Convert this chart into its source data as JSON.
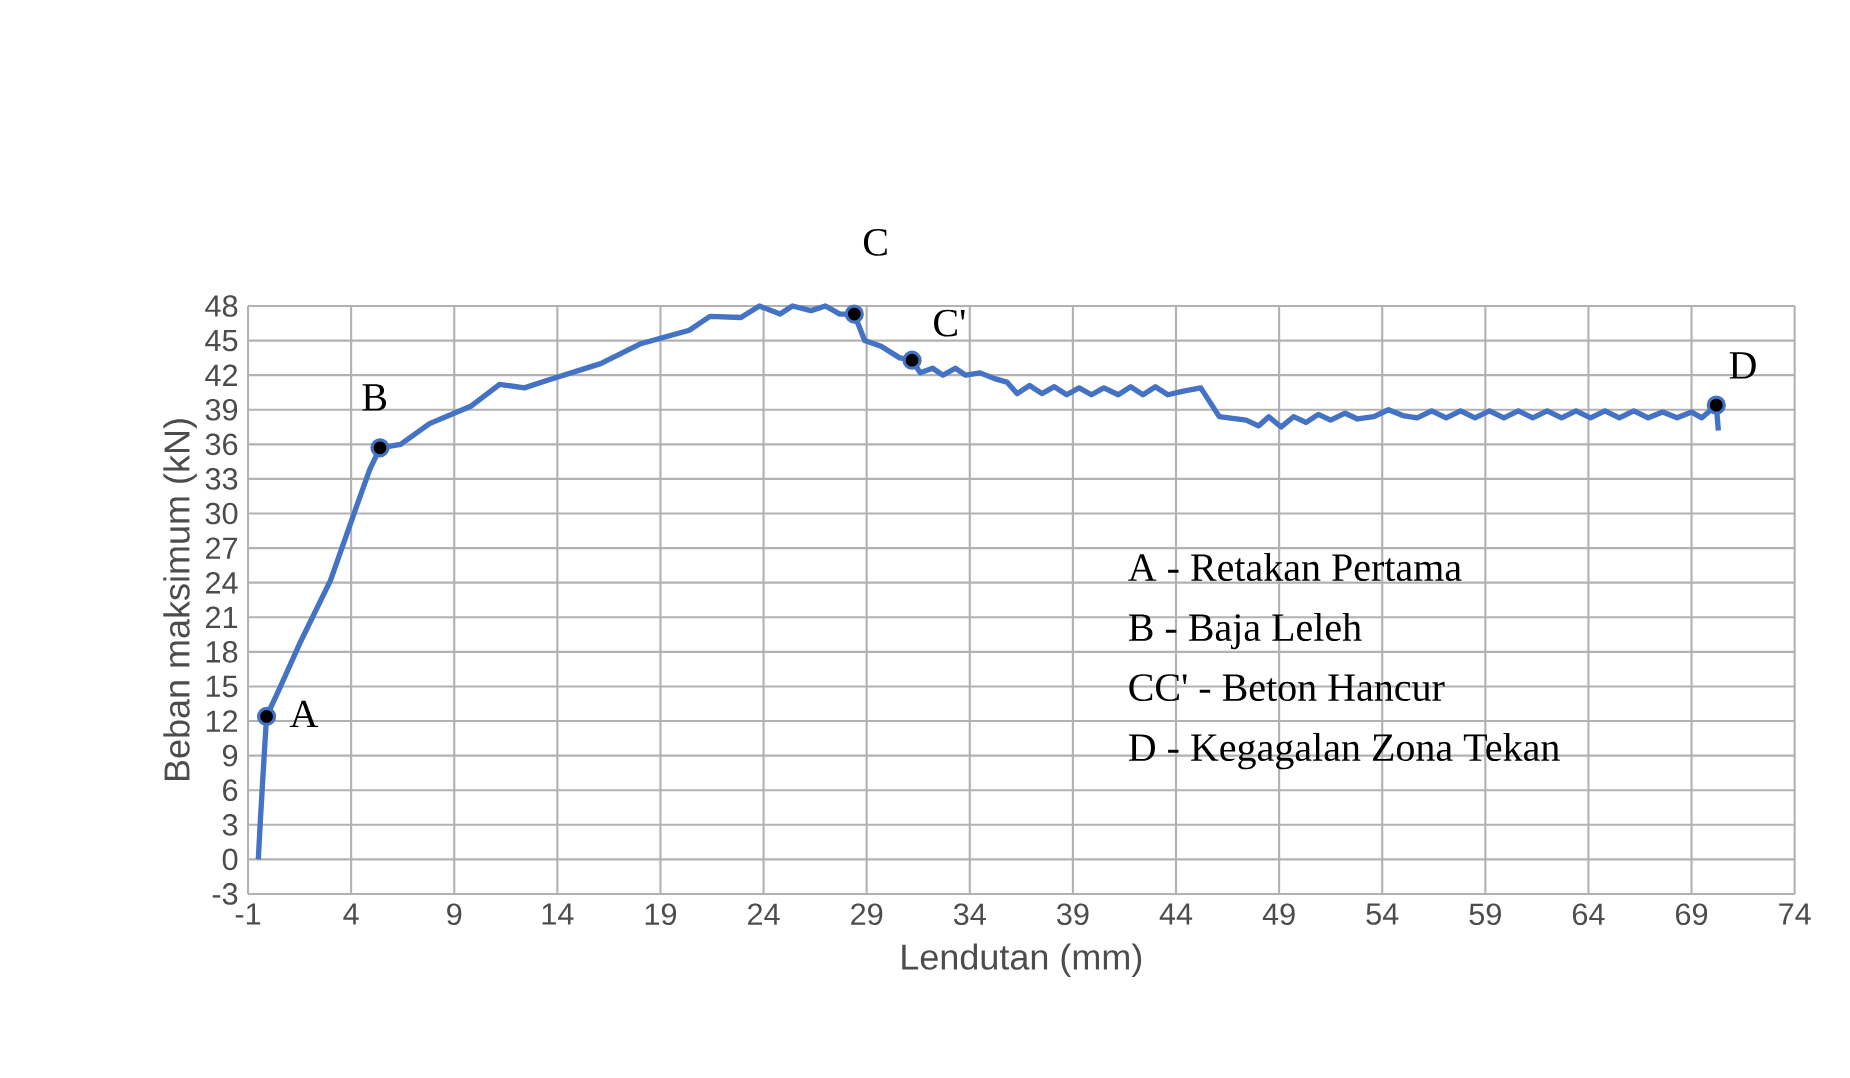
{
  "chart_data": {
    "type": "line",
    "xlabel": "Lendutan (mm)",
    "ylabel": "Beban maksimum (kN)",
    "xlim": [
      -1,
      74
    ],
    "xticks": [
      -1,
      4,
      9,
      14,
      19,
      24,
      29,
      34,
      39,
      44,
      49,
      54,
      59,
      64,
      69,
      74
    ],
    "ylim": [
      -3,
      48
    ],
    "yticks": [
      -3,
      0,
      3,
      6,
      9,
      12,
      15,
      18,
      21,
      24,
      27,
      30,
      33,
      36,
      39,
      42,
      45,
      48
    ],
    "grid": true,
    "series": [
      {
        "color": "#4472c4",
        "marker": "none",
        "line_style": "solid",
        "x": [
          -0.5,
          -0.4,
          -0.3,
          -0.2,
          -0.1,
          0.5,
          1.5,
          3.0,
          4.2,
          4.9,
          5.4,
          6.4,
          7.8,
          9.8,
          11.2,
          12.4,
          13.6,
          16.1,
          18.0,
          20.4,
          21.4,
          22.9,
          23.8,
          24.8,
          25.4,
          26.3,
          27.0,
          27.7,
          28.4,
          28.9,
          29.7,
          30.6,
          31.2,
          31.6,
          32.2,
          32.7,
          33.3,
          33.8,
          34.5,
          35.2,
          35.8,
          36.3,
          36.9,
          37.5,
          38.1,
          38.7,
          39.3,
          39.9,
          40.5,
          41.2,
          41.8,
          42.4,
          43.0,
          43.6,
          44.3,
          45.2,
          46.1,
          47.4,
          48.0,
          48.5,
          49.1,
          49.7,
          50.3,
          50.9,
          51.5,
          52.2,
          52.8,
          53.6,
          54.3,
          55.0,
          55.7,
          56.4,
          57.1,
          57.8,
          58.5,
          59.2,
          59.9,
          60.6,
          61.3,
          62.0,
          62.7,
          63.4,
          64.1,
          64.8,
          65.5,
          66.2,
          66.9,
          67.6,
          68.3,
          69.0,
          69.5,
          70.2,
          70.3
        ],
        "values": [
          0,
          3.4,
          6.5,
          9.5,
          12.4,
          14.7,
          18.7,
          24.2,
          30.3,
          33.8,
          35.7,
          36.0,
          37.8,
          39.3,
          41.2,
          40.9,
          41.6,
          43.0,
          44.7,
          45.9,
          47.1,
          47.0,
          48.0,
          47.3,
          48.0,
          47.6,
          48.0,
          47.3,
          47.3,
          45.0,
          44.5,
          43.5,
          43.3,
          42.2,
          42.6,
          42.0,
          42.6,
          42.0,
          42.2,
          41.7,
          41.4,
          40.4,
          41.1,
          40.4,
          41.0,
          40.3,
          40.9,
          40.3,
          40.9,
          40.3,
          41.0,
          40.3,
          41.0,
          40.3,
          40.6,
          40.9,
          38.4,
          38.1,
          37.6,
          38.4,
          37.5,
          38.4,
          37.9,
          38.6,
          38.1,
          38.7,
          38.2,
          38.4,
          39.0,
          38.5,
          38.3,
          38.9,
          38.3,
          38.9,
          38.3,
          38.9,
          38.3,
          38.9,
          38.3,
          38.9,
          38.3,
          38.9,
          38.3,
          38.9,
          38.3,
          38.9,
          38.3,
          38.8,
          38.3,
          38.8,
          38.3,
          39.4,
          37.2
        ]
      },
      {
        "type": "scatter",
        "color": "#000000",
        "marker": "circle",
        "x": [
          -0.1,
          5.4,
          28.4,
          31.2,
          70.2
        ],
        "values": [
          12.4,
          35.7,
          47.3,
          43.3,
          39.4
        ]
      }
    ],
    "annotations": [
      {
        "text": "A",
        "x": -0.1,
        "y": 12.4
      },
      {
        "text": "B",
        "x": 5.4,
        "y": 35.7
      },
      {
        "text": "C",
        "x": 28.4,
        "y": 47.3
      },
      {
        "text": "C'",
        "x": 31.2,
        "y": 43.3
      },
      {
        "text": "D",
        "x": 70.2,
        "y": 39.4
      },
      "A    - Retakan Pertama",
      "B    - Baja Leleh",
      "CC' - Beton Hancur",
      "D    - Kegagalan Zona Tekan"
    ]
  }
}
